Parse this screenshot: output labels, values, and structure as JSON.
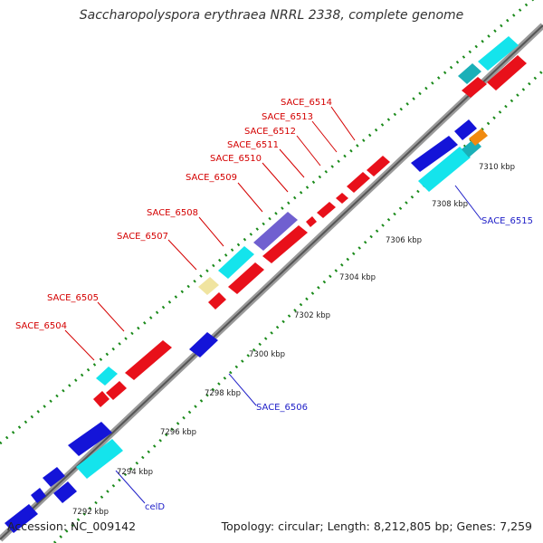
{
  "title": "Saccharopolyspora erythraea NRRL 2338, complete genome",
  "accession": "Accession: NC_009142",
  "topology": "Topology: circular; Length: 8,212,805 bp; Genes: 7,259",
  "colors": {
    "cds_red": "#e8101a",
    "cds_blue": "#1414d8",
    "cds_cyan": "#14e4ec",
    "cds_teal": "#1ab0b8",
    "cds_purple": "#7060d0",
    "cds_yellow": "#f0e4a0",
    "cds_orange": "#f08a10",
    "gc_dots": "#1a8a1a",
    "backbone": "#8a8a8a"
  },
  "ticks": [
    "7292 kbp",
    "7294 kbp",
    "7296 kbp",
    "7298 kbp",
    "7300 kbp",
    "7302 kbp",
    "7304 kbp",
    "7306 kbp",
    "7308 kbp",
    "7310 kbp"
  ],
  "top_labels": [
    "SACE_6504",
    "SACE_6505",
    "SACE_6507",
    "SACE_6508",
    "SACE_6509",
    "SACE_6510",
    "SACE_6511",
    "SACE_6512",
    "SACE_6513",
    "SACE_6514"
  ],
  "bottom_labels": [
    "celD",
    "SACE_6506",
    "SACE_6515"
  ]
}
